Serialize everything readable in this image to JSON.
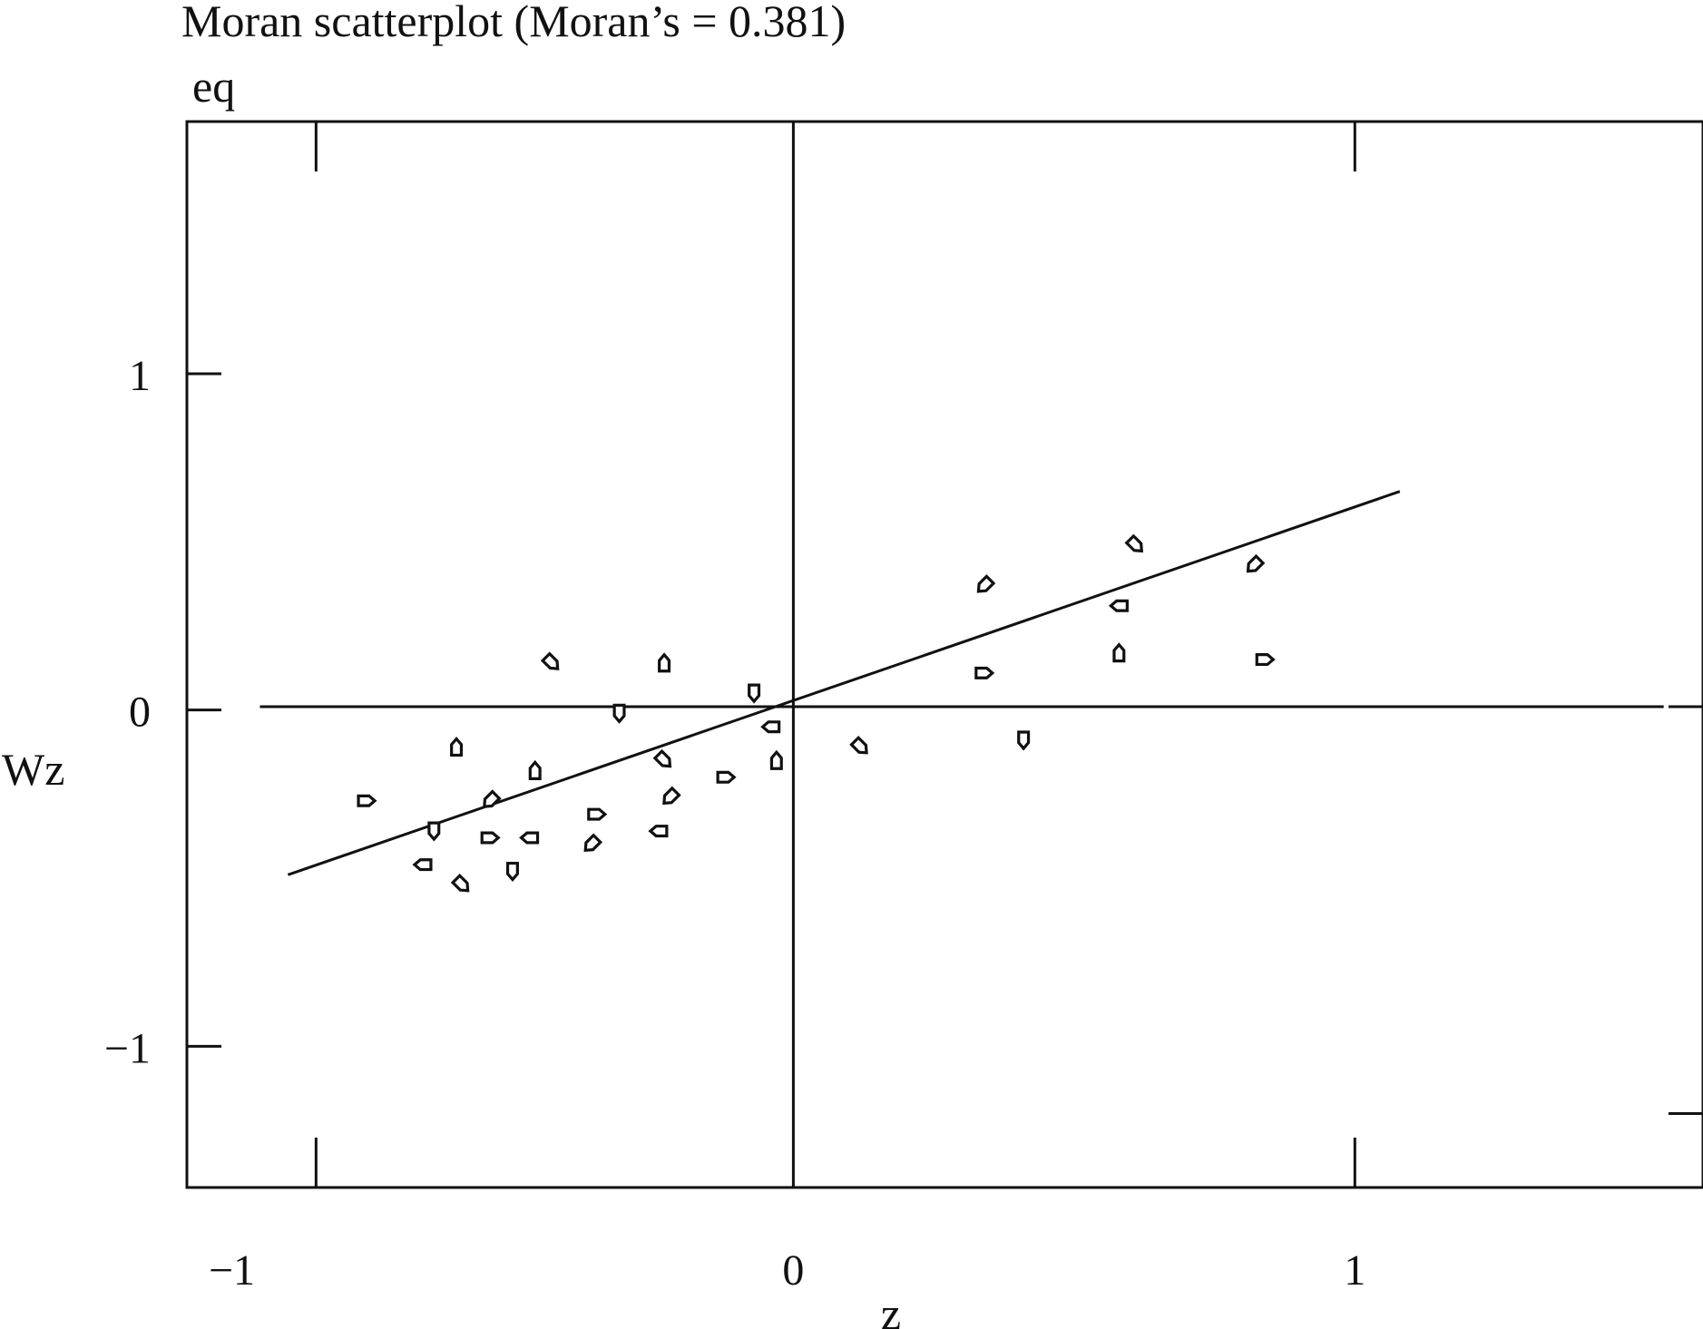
{
  "chart_data": {
    "type": "scatter",
    "title": "Moran scatterplot (Moran’s = 0.381)",
    "subtitle": "eq",
    "xlabel": "z",
    "ylabel": "Wz",
    "xlim": [
      -1.08,
      1.62
    ],
    "ylim": [
      -1.42,
      1.75
    ],
    "x_ticks": [
      {
        "value": -1,
        "label": "−1"
      },
      {
        "value": 0,
        "label": "0"
      },
      {
        "value": 1,
        "label": "1"
      }
    ],
    "y_ticks": [
      {
        "value": 1,
        "label": "1"
      },
      {
        "value": 0,
        "label": "0"
      },
      {
        "value": -1,
        "label": "−1"
      }
    ],
    "grid": false,
    "reference_lines": {
      "x": 0,
      "y": 0.01
    },
    "regression_line": {
      "x": [
        -0.9,
        1.08
      ],
      "y": [
        -0.49,
        0.65
      ]
    },
    "points": [
      {
        "x": -0.76,
        "y": -0.27
      },
      {
        "x": -0.64,
        "y": -0.36
      },
      {
        "x": -0.66,
        "y": -0.46
      },
      {
        "x": -0.6,
        "y": -0.11
      },
      {
        "x": -0.59,
        "y": -0.52
      },
      {
        "x": -0.54,
        "y": -0.27
      },
      {
        "x": -0.54,
        "y": -0.38
      },
      {
        "x": -0.5,
        "y": -0.48
      },
      {
        "x": -0.47,
        "y": -0.38
      },
      {
        "x": -0.46,
        "y": -0.18
      },
      {
        "x": -0.43,
        "y": 0.14
      },
      {
        "x": -0.36,
        "y": -0.4
      },
      {
        "x": -0.35,
        "y": -0.31
      },
      {
        "x": -0.31,
        "y": -0.01
      },
      {
        "x": -0.24,
        "y": -0.36
      },
      {
        "x": -0.23,
        "y": 0.14
      },
      {
        "x": -0.23,
        "y": -0.15
      },
      {
        "x": -0.22,
        "y": -0.26
      },
      {
        "x": -0.12,
        "y": -0.2
      },
      {
        "x": -0.07,
        "y": 0.05
      },
      {
        "x": -0.04,
        "y": -0.05
      },
      {
        "x": -0.03,
        "y": -0.15
      },
      {
        "x": 0.12,
        "y": -0.11
      },
      {
        "x": 0.34,
        "y": 0.37
      },
      {
        "x": 0.34,
        "y": 0.11
      },
      {
        "x": 0.41,
        "y": -0.09
      },
      {
        "x": 0.58,
        "y": 0.31
      },
      {
        "x": 0.58,
        "y": 0.17
      },
      {
        "x": 0.61,
        "y": 0.49
      },
      {
        "x": 0.82,
        "y": 0.43
      },
      {
        "x": 0.84,
        "y": 0.15
      }
    ]
  }
}
